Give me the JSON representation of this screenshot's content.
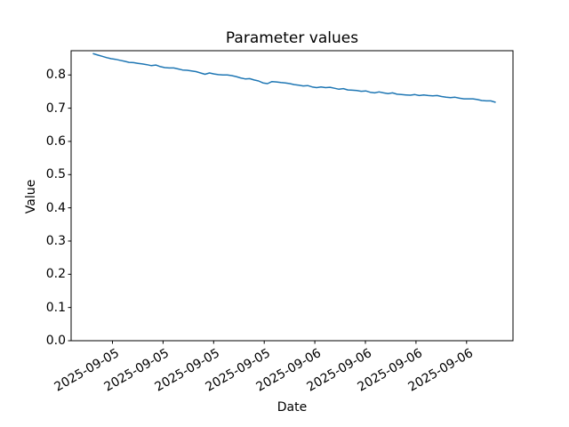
{
  "figure": {
    "background": "#ffffff"
  },
  "chart_data": {
    "type": "line",
    "title": "Parameter values",
    "xlabel": "Date",
    "ylabel": "Value",
    "x_tick_labels": [
      "2025-09-05",
      "2025-09-05",
      "2025-09-05",
      "2025-09-05",
      "2025-09-06",
      "2025-09-06",
      "2025-09-06",
      "2025-09-06"
    ],
    "y_tick_labels": [
      "0.0",
      "0.1",
      "0.2",
      "0.3",
      "0.4",
      "0.5",
      "0.6",
      "0.7",
      "0.8"
    ],
    "ylim": [
      0.0,
      0.873
    ],
    "grid": false,
    "legend": "none",
    "x_tick_rotation_deg": 30,
    "series": [
      {
        "name": "parameter-value",
        "color": "#1f77b4",
        "line_width": 1.5,
        "values": [
          0.864,
          0.86,
          0.856,
          0.852,
          0.849,
          0.847,
          0.844,
          0.841,
          0.838,
          0.837,
          0.835,
          0.833,
          0.831,
          0.828,
          0.83,
          0.825,
          0.822,
          0.821,
          0.821,
          0.818,
          0.815,
          0.814,
          0.812,
          0.81,
          0.806,
          0.802,
          0.806,
          0.803,
          0.801,
          0.8,
          0.8,
          0.798,
          0.795,
          0.791,
          0.788,
          0.789,
          0.785,
          0.782,
          0.776,
          0.774,
          0.78,
          0.779,
          0.777,
          0.776,
          0.774,
          0.771,
          0.769,
          0.767,
          0.768,
          0.764,
          0.762,
          0.764,
          0.762,
          0.763,
          0.76,
          0.757,
          0.759,
          0.755,
          0.754,
          0.753,
          0.751,
          0.752,
          0.748,
          0.746,
          0.749,
          0.746,
          0.744,
          0.746,
          0.742,
          0.741,
          0.74,
          0.739,
          0.741,
          0.738,
          0.74,
          0.738,
          0.737,
          0.738,
          0.735,
          0.733,
          0.732,
          0.733,
          0.73,
          0.728,
          0.728,
          0.728,
          0.726,
          0.723,
          0.722,
          0.722,
          0.718
        ]
      }
    ]
  }
}
